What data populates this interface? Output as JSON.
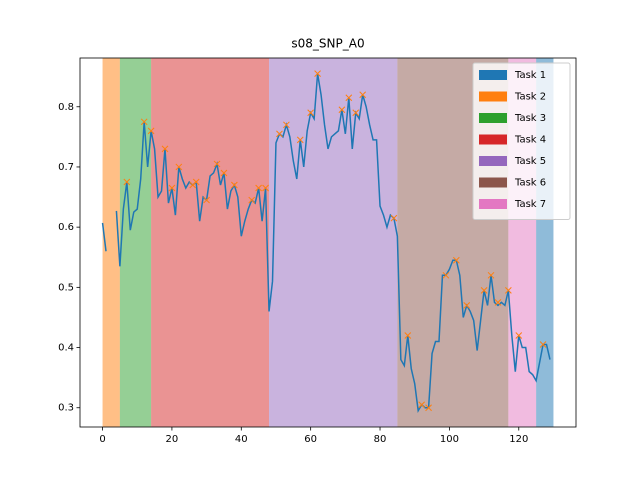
{
  "chart_data": {
    "type": "line",
    "title": "s08_SNP_A0",
    "xlim": [
      -6.5,
      136.5
    ],
    "ylim": [
      0.268,
      0.881
    ],
    "xticks": [
      0,
      20,
      40,
      60,
      80,
      100,
      120
    ],
    "yticks": [
      0.3,
      0.4,
      0.5,
      0.6,
      0.7,
      0.8
    ],
    "legend": "upper right",
    "spans": [
      {
        "name": "Task 1",
        "color": "#1f77b4",
        "start": 125,
        "end": 130
      },
      {
        "name": "Task 2",
        "color": "#ff7f0e",
        "start": 0,
        "end": 5
      },
      {
        "name": "Task 3",
        "color": "#2ca02c",
        "start": 5,
        "end": 14
      },
      {
        "name": "Task 4",
        "color": "#d62728",
        "start": 14,
        "end": 48
      },
      {
        "name": "Task 5",
        "color": "#9467bd",
        "start": 48,
        "end": 85
      },
      {
        "name": "Task 6",
        "color": "#8c564b",
        "start": 85,
        "end": 117
      },
      {
        "name": "Task 7",
        "color": "#e377c2",
        "start": 117,
        "end": 125
      }
    ],
    "series": [
      {
        "color": "#1f77b4",
        "x": [
          0,
          1,
          2,
          3,
          4,
          5,
          6,
          7,
          8,
          9,
          10,
          11,
          12,
          13,
          14,
          15,
          16,
          17,
          18,
          19,
          20,
          21,
          22,
          23,
          24,
          25,
          26,
          27,
          28,
          29,
          30,
          31,
          32,
          33,
          34,
          35,
          36,
          37,
          38,
          39,
          40,
          41,
          42,
          43,
          44,
          45,
          46,
          47,
          48,
          49,
          50,
          51,
          52,
          53,
          54,
          55,
          56,
          57,
          58,
          59,
          60,
          61,
          62,
          63,
          64,
          65,
          66,
          67,
          68,
          69,
          70,
          71,
          72,
          73,
          74,
          75,
          76,
          77,
          78,
          79,
          80,
          81,
          82,
          83,
          84,
          85,
          86,
          87,
          88,
          89,
          90,
          91,
          92,
          93,
          94,
          95,
          96,
          97,
          98,
          99,
          100,
          101,
          102,
          103,
          104,
          105,
          106,
          107,
          108,
          109,
          110,
          111,
          112,
          113,
          114,
          115,
          116,
          117,
          118,
          119,
          120,
          121,
          122,
          123,
          124,
          125,
          126,
          127,
          128,
          129
        ],
        "values": [
          0.607,
          0.56,
          null,
          null,
          0.627,
          0.535,
          0.63,
          0.675,
          0.595,
          0.625,
          0.63,
          0.68,
          0.775,
          0.7,
          0.76,
          0.73,
          0.65,
          0.66,
          0.73,
          0.64,
          0.665,
          0.62,
          0.7,
          0.68,
          0.665,
          0.675,
          0.67,
          0.675,
          0.61,
          0.65,
          0.645,
          0.685,
          0.69,
          0.705,
          0.67,
          0.69,
          0.63,
          0.66,
          0.67,
          0.65,
          0.585,
          0.61,
          0.63,
          0.645,
          0.64,
          0.665,
          0.61,
          0.665,
          0.46,
          0.51,
          0.74,
          0.755,
          0.75,
          0.77,
          0.75,
          0.71,
          0.68,
          0.745,
          0.7,
          0.76,
          0.79,
          0.78,
          0.855,
          0.82,
          0.77,
          0.73,
          0.75,
          0.755,
          0.76,
          0.795,
          0.755,
          0.815,
          0.73,
          0.79,
          0.78,
          0.82,
          0.8,
          0.77,
          0.745,
          0.745,
          0.635,
          0.62,
          0.6,
          0.62,
          0.615,
          0.585,
          0.38,
          0.37,
          0.42,
          0.365,
          0.34,
          0.295,
          0.305,
          0.3,
          0.3,
          0.39,
          0.41,
          0.41,
          0.52,
          0.52,
          0.53,
          0.545,
          0.545,
          0.52,
          0.45,
          0.47,
          0.46,
          0.445,
          0.395,
          0.445,
          0.495,
          0.47,
          0.52,
          0.475,
          0.47,
          0.475,
          0.47,
          0.495,
          0.42,
          0.36,
          0.42,
          0.4,
          0.4,
          0.36,
          0.355,
          0.345,
          0.375,
          0.405,
          0.405,
          0.38
        ]
      }
    ],
    "markers": {
      "color": "#ff7f0e",
      "x": [
        7,
        12,
        14,
        18,
        20,
        22,
        26,
        27,
        30,
        33,
        35,
        38,
        43,
        45,
        47,
        51,
        53,
        57,
        60,
        62,
        69,
        71,
        73,
        75,
        84,
        88,
        92,
        94,
        99,
        102,
        105,
        110,
        112,
        114,
        117,
        120,
        127
      ],
      "values": [
        0.675,
        0.775,
        0.76,
        0.73,
        0.665,
        0.7,
        0.67,
        0.675,
        0.645,
        0.705,
        0.69,
        0.67,
        0.645,
        0.665,
        0.665,
        0.755,
        0.77,
        0.745,
        0.79,
        0.855,
        0.795,
        0.815,
        0.79,
        0.82,
        0.615,
        0.42,
        0.305,
        0.3,
        0.52,
        0.545,
        0.47,
        0.495,
        0.52,
        0.475,
        0.495,
        0.42,
        0.405
      ]
    }
  }
}
